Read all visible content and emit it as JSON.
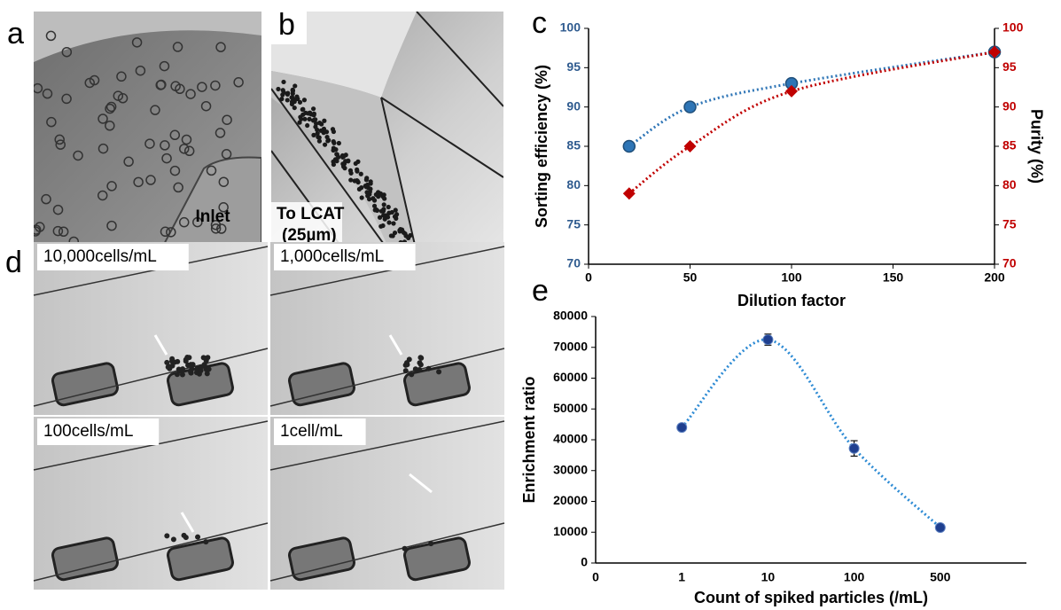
{
  "panels": {
    "a": {
      "label": "a",
      "caption": "Inlet"
    },
    "b": {
      "label": "b",
      "caption_lines": [
        "To LCAT",
        "(25µm)"
      ]
    },
    "d": {
      "label": "d",
      "captions": [
        "10,000cells/mL",
        "1,000cells/mL",
        "100cells/mL",
        "1cell/mL"
      ]
    }
  },
  "chart_data": [
    {
      "type": "scatter",
      "panel_label": "c",
      "xlabel": "Dilution factor",
      "ylabel": "Sorting efficiency (%)",
      "y2label": "Purity (%)",
      "x": [
        20,
        50,
        100,
        200
      ],
      "xlim": [
        0,
        200
      ],
      "xticks": [
        0,
        50,
        100,
        150,
        200
      ],
      "ylim": [
        70,
        100
      ],
      "yticks": [
        70,
        75,
        80,
        85,
        90,
        95,
        100
      ],
      "y2lim": [
        70,
        100
      ],
      "y2ticks": [
        70,
        75,
        80,
        85,
        90,
        95,
        100
      ],
      "y_color": "#2f5b8f",
      "y2_color": "#c00000",
      "series": [
        {
          "color": "#2e75b6",
          "marker": "circle",
          "values": [
            85,
            90,
            93,
            97
          ]
        },
        {
          "color": "#c00000",
          "marker": "diamond",
          "axis": "y2",
          "values": [
            79,
            85,
            92,
            97
          ]
        }
      ]
    },
    {
      "type": "scatter",
      "panel_label": "e",
      "xlabel": "Count of spiked particles (/mL)",
      "ylabel": "Enrichment ratio",
      "categories": [
        "0",
        "1",
        "10",
        "100",
        "500",
        null
      ],
      "values": [
        null,
        44000,
        72500,
        37200,
        11500,
        null
      ],
      "errors": [
        null,
        1000,
        1800,
        2500,
        500,
        null
      ],
      "color": "#1f3f8f",
      "trend_color": "#2e8bd4",
      "ylim": [
        0,
        80000
      ],
      "yticks": [
        0,
        10000,
        20000,
        30000,
        40000,
        50000,
        60000,
        70000,
        80000
      ]
    }
  ]
}
